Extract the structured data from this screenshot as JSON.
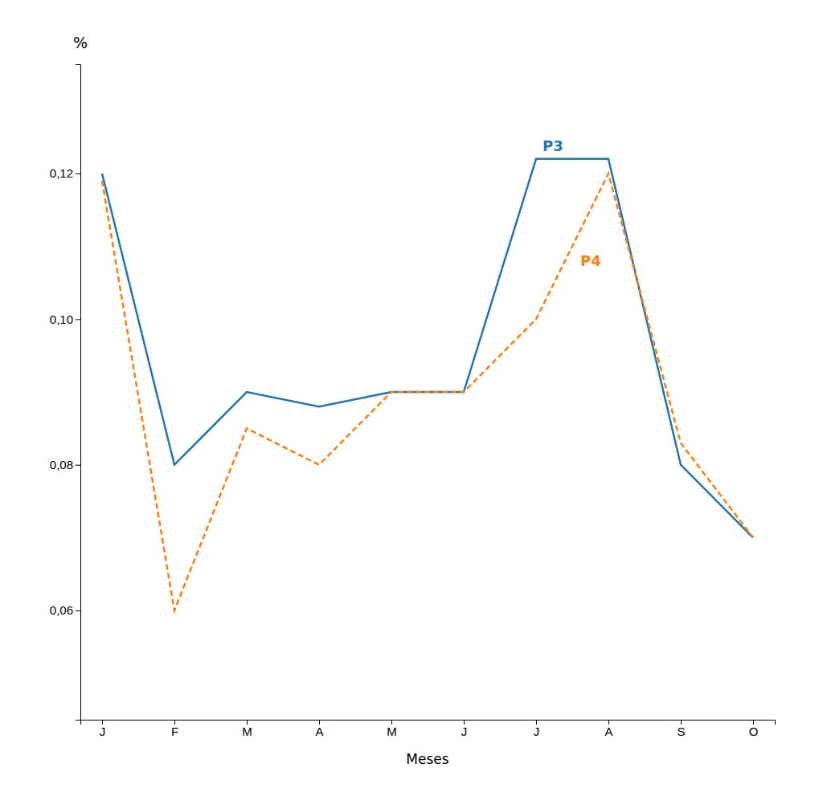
{
  "chart_data": {
    "type": "line",
    "categories": [
      "J",
      "F",
      "M",
      "A",
      "M",
      "J",
      "J",
      "A",
      "S",
      "O"
    ],
    "series": [
      {
        "name": "P3",
        "values": [
          0.12,
          0.08,
          0.09,
          0.088,
          0.09,
          0.09,
          0.122,
          0.122,
          0.08,
          0.07
        ],
        "line_style": "solid"
      },
      {
        "name": "P4",
        "values": [
          0.119,
          0.06,
          0.085,
          0.08,
          0.09,
          0.09,
          0.1,
          0.12,
          0.083,
          0.07
        ],
        "line_style": "dashed"
      }
    ],
    "xlabel": "Meses",
    "ylabel": "%",
    "ylim": [
      0.045,
      0.135
    ],
    "yticks": [
      {
        "value": 0.06,
        "label": "0,06"
      },
      {
        "value": 0.08,
        "label": "0,08"
      },
      {
        "value": 0.1,
        "label": "0,10"
      },
      {
        "value": 0.12,
        "label": "0,12"
      }
    ],
    "grid": false
  }
}
